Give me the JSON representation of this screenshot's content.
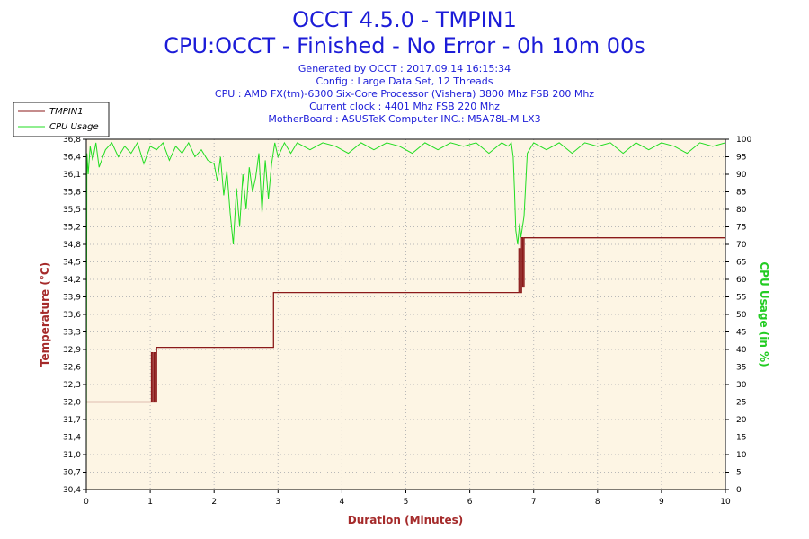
{
  "header": {
    "title": "OCCT 4.5.0 - TMPIN1",
    "subtitle": "CPU:OCCT - Finished - No Error - 0h 10m 00s",
    "info_lines": [
      "Generated by OCCT : 2017.09.14 16:15:34",
      "Config : Large Data Set, 12 Threads",
      "CPU : AMD FX(tm)-6300 Six-Core Processor (Vishera) 3800 Mhz FSB 200 Mhz",
      "Current clock : 4401 Mhz FSB 220 Mhz",
      "MotherBoard : ASUSTeK Computer INC.: M5A78L-M LX3"
    ]
  },
  "colors": {
    "temperature": "#8b1a1a",
    "cpu_usage": "#22dd22",
    "plot_background": "#fdf5e4",
    "title": "#1c1cd8",
    "xlabel": "#a52a2a",
    "ylabel": "#a52a2a",
    "y2label": "#22cc22"
  },
  "chart_data": {
    "type": "line",
    "xlabel": "Duration (Minutes)",
    "ylabel": "Temperature (°C)",
    "y2label": "CPU Usage (in %)",
    "xlim": [
      0,
      10
    ],
    "ylim": [
      30.4,
      36.8
    ],
    "y2lim": [
      0,
      100
    ],
    "grid": true,
    "legend_position": "top-left",
    "x_ticks": [
      "0",
      "1",
      "2",
      "3",
      "4",
      "5",
      "6",
      "7",
      "8",
      "9",
      "10"
    ],
    "y_ticks": [
      "30,4",
      "30,7",
      "31,0",
      "31,4",
      "31,7",
      "32,0",
      "32,3",
      "32,6",
      "32,9",
      "33,3",
      "33,6",
      "33,9",
      "34,2",
      "34,5",
      "34,8",
      "35,2",
      "35,5",
      "35,8",
      "36,1",
      "36,4",
      "36,8"
    ],
    "y2_ticks": [
      "0",
      "5",
      "10",
      "15",
      "20",
      "25",
      "30",
      "35",
      "40",
      "45",
      "50",
      "55",
      "60",
      "65",
      "70",
      "75",
      "80",
      "85",
      "90",
      "95",
      "100"
    ],
    "series": [
      {
        "name": "TMPIN1",
        "axis": "left",
        "x": [
          0,
          1.0,
          1.02,
          1.04,
          1.06,
          1.08,
          1.1,
          1.12,
          2.92,
          2.93,
          6.75,
          6.77,
          6.79,
          6.81,
          6.83,
          6.85,
          10
        ],
        "y": [
          32.0,
          32.0,
          32.9,
          32.0,
          32.9,
          32.0,
          33.0,
          33.0,
          33.0,
          34.0,
          34.0,
          34.8,
          34.0,
          35.0,
          34.1,
          35.0,
          35.0
        ]
      },
      {
        "name": "CPU Usage",
        "axis": "right",
        "x": [
          0,
          0.01,
          0.03,
          0.06,
          0.1,
          0.15,
          0.2,
          0.3,
          0.4,
          0.5,
          0.6,
          0.7,
          0.8,
          0.9,
          1.0,
          1.1,
          1.2,
          1.3,
          1.4,
          1.5,
          1.6,
          1.7,
          1.8,
          1.9,
          2.0,
          2.05,
          2.1,
          2.15,
          2.2,
          2.25,
          2.3,
          2.35,
          2.4,
          2.45,
          2.5,
          2.55,
          2.6,
          2.65,
          2.7,
          2.75,
          2.8,
          2.85,
          2.9,
          2.95,
          3.0,
          3.05,
          3.1,
          3.2,
          3.3,
          3.5,
          3.7,
          3.9,
          4.1,
          4.3,
          4.5,
          4.7,
          4.9,
          5.1,
          5.3,
          5.5,
          5.7,
          5.9,
          6.1,
          6.3,
          6.5,
          6.6,
          6.65,
          6.68,
          6.7,
          6.72,
          6.75,
          6.78,
          6.8,
          6.85,
          6.9,
          7.0,
          7.2,
          7.4,
          7.6,
          7.8,
          8.0,
          8.2,
          8.4,
          8.6,
          8.8,
          9.0,
          9.2,
          9.4,
          9.6,
          9.8,
          10
        ],
        "y": [
          5,
          96,
          90,
          98,
          94,
          99,
          92,
          97,
          99,
          95,
          98,
          96,
          99,
          93,
          98,
          97,
          99,
          94,
          98,
          96,
          99,
          95,
          97,
          94,
          93,
          88,
          95,
          84,
          91,
          79,
          70,
          86,
          75,
          90,
          80,
          92,
          85,
          89,
          96,
          79,
          94,
          83,
          93,
          99,
          95,
          97,
          99,
          96,
          99,
          97,
          99,
          98,
          96,
          99,
          97,
          99,
          98,
          96,
          99,
          97,
          99,
          98,
          99,
          96,
          99,
          98,
          99,
          95,
          85,
          74,
          70,
          76,
          72,
          78,
          96,
          99,
          97,
          99,
          96,
          99,
          98,
          99,
          96,
          99,
          97,
          99,
          98,
          96,
          99,
          98,
          99
        ]
      }
    ]
  }
}
